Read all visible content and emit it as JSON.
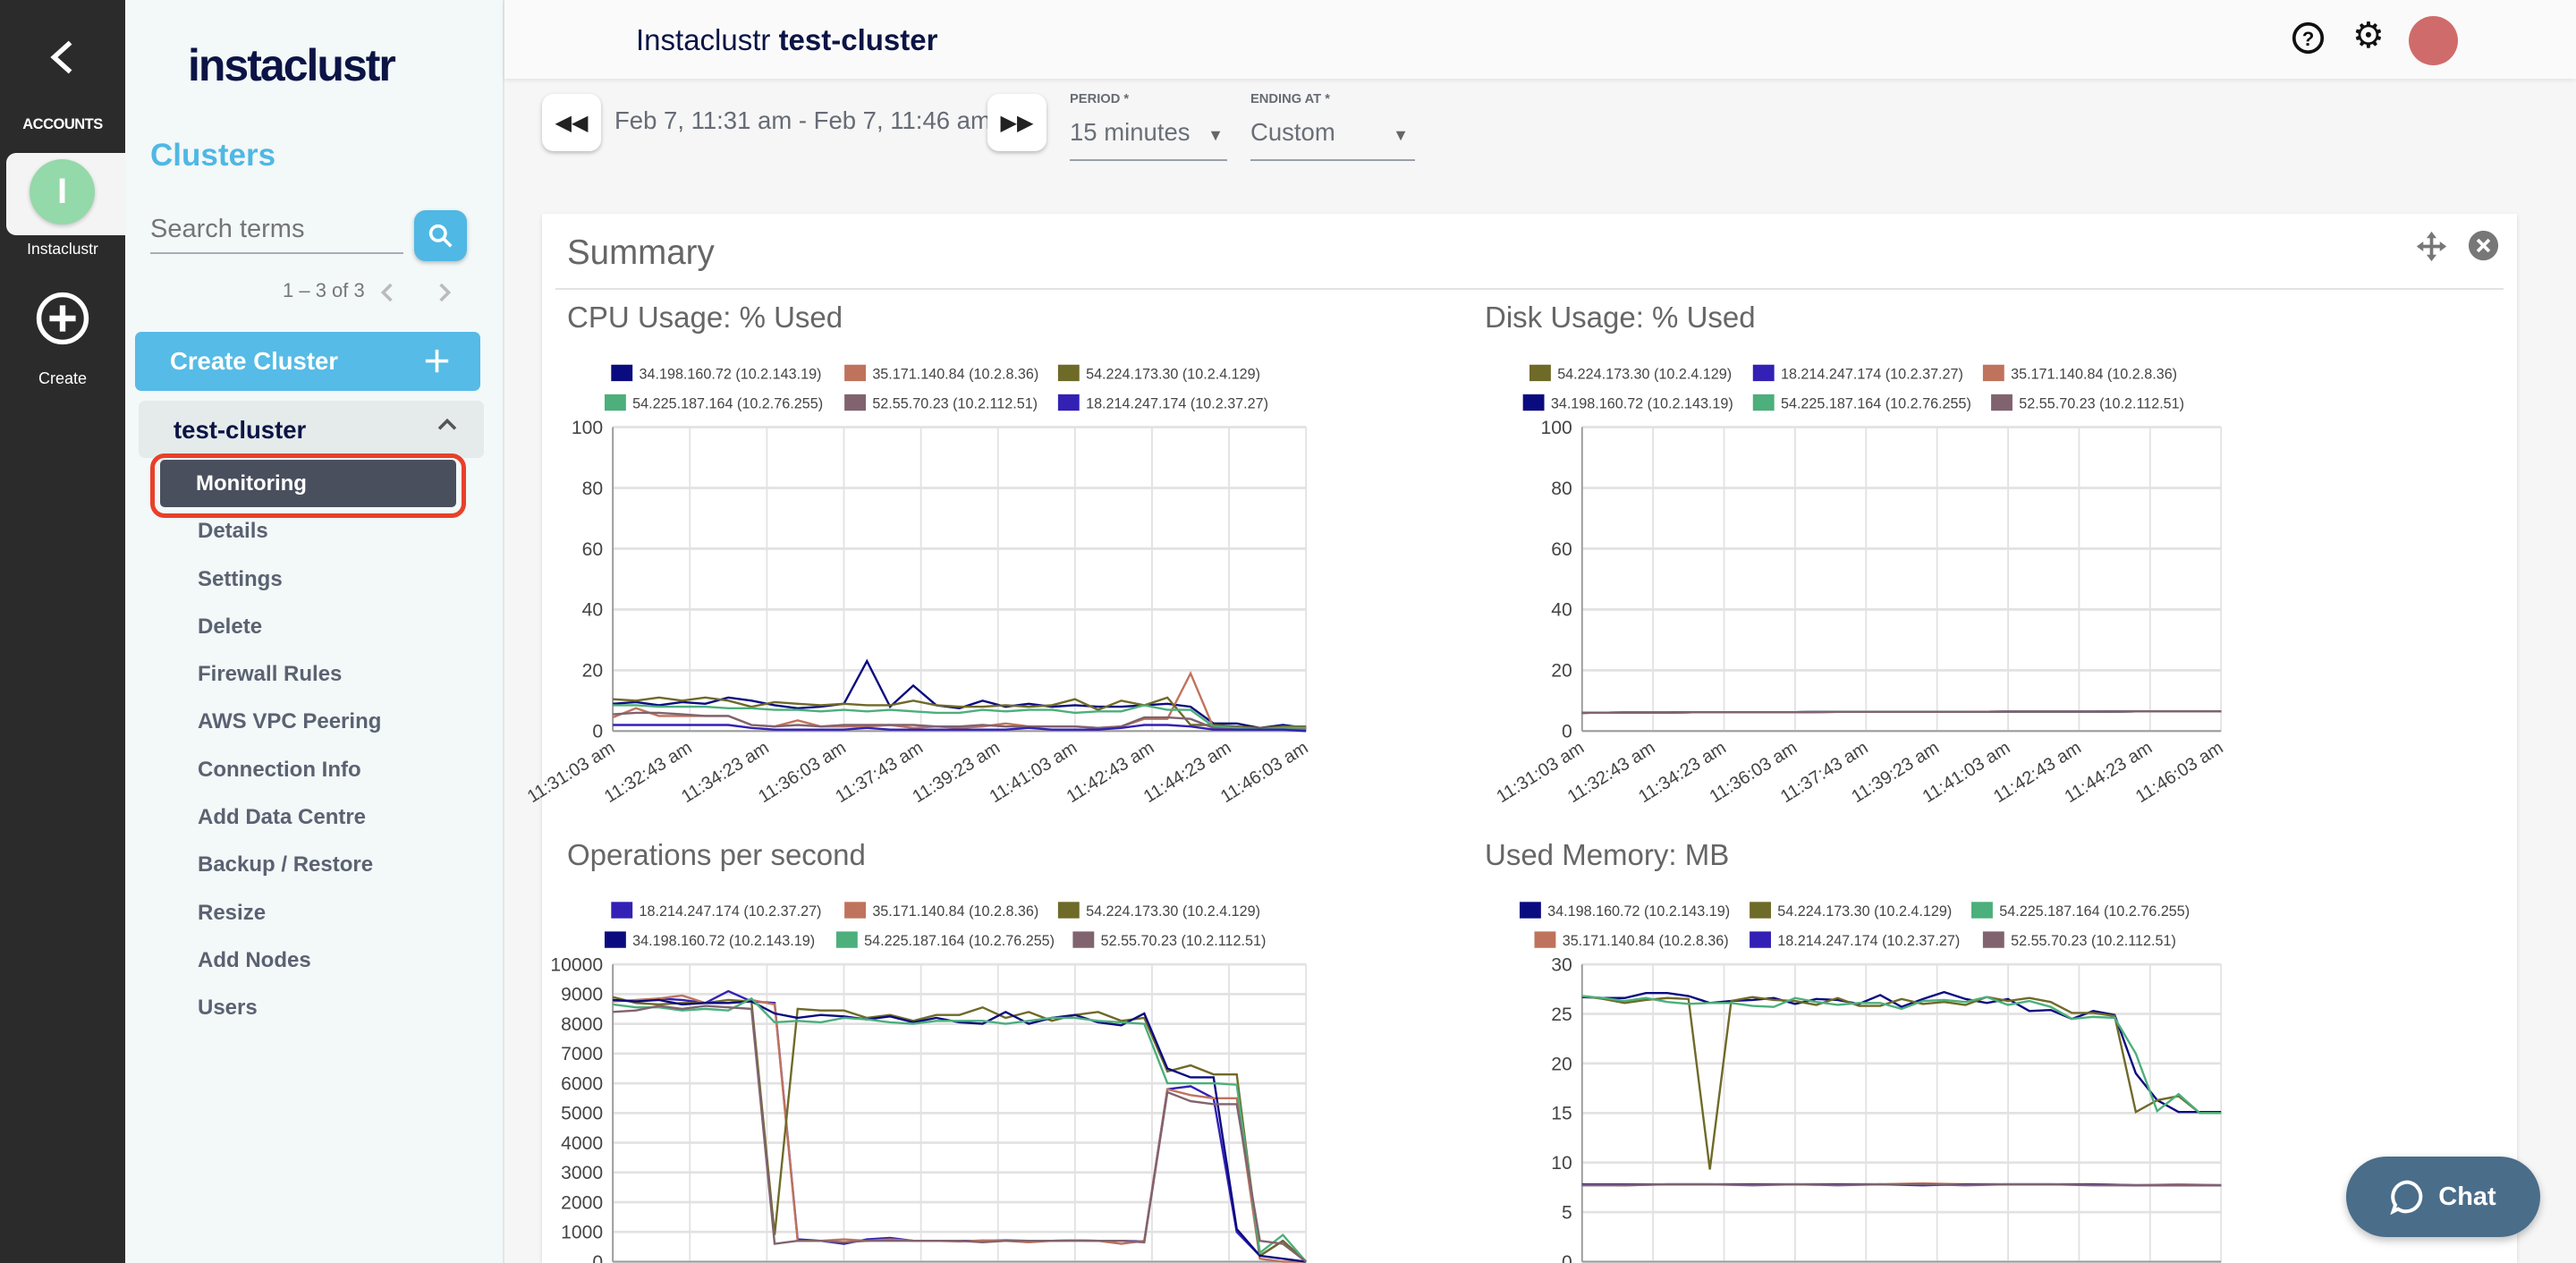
{
  "rail": {
    "accounts_label": "ACCOUNTS",
    "account_name": "Instaclustr",
    "account_initial": "I",
    "account_color": "#94d9a9",
    "create_label": "Create"
  },
  "sidebar": {
    "logo": "instaclustr",
    "section_title": "Clusters",
    "search_placeholder": "Search terms",
    "pagination": "1 – 3 of 3",
    "create_cluster_label": "Create Cluster",
    "cluster_name": "test-cluster",
    "items": [
      {
        "label": "Monitoring",
        "active": true
      },
      {
        "label": "Details"
      },
      {
        "label": "Settings"
      },
      {
        "label": "Delete"
      },
      {
        "label": "Firewall Rules"
      },
      {
        "label": "AWS VPC Peering"
      },
      {
        "label": "Connection Info"
      },
      {
        "label": "Add Data Centre"
      },
      {
        "label": "Backup / Restore"
      },
      {
        "label": "Resize"
      },
      {
        "label": "Add Nodes"
      },
      {
        "label": "Users"
      }
    ]
  },
  "header": {
    "title_prefix": "Instaclustr",
    "title_cluster": "test-cluster",
    "avatar_color": "#d06b6b"
  },
  "controls": {
    "range_text": "Feb 7, 11:31 am - Feb 7, 11:46 am",
    "period_label": "PERIOD *",
    "period_value": "15 minutes",
    "ending_label": "ENDING AT *",
    "ending_value": "Custom"
  },
  "summary": {
    "title": "Summary"
  },
  "chat": {
    "label": "Chat"
  },
  "chart_data": [
    {
      "type": "line",
      "title": "CPU Usage: % Used",
      "ylim": [
        0,
        100
      ],
      "yticks": [
        0,
        20,
        40,
        60,
        80,
        100
      ],
      "grid": true,
      "legend": "top",
      "x_ticks": [
        "11:31:03 am",
        "11:32:43 am",
        "11:34:23 am",
        "11:36:03 am",
        "11:37:43 am",
        "11:39:23 am",
        "11:41:03 am",
        "11:42:43 am",
        "11:44:23 am",
        "11:46:03 am"
      ],
      "series": [
        {
          "name": "34.198.160.72 (10.2.143.19)",
          "color": "#0b0b80",
          "values": [
            9,
            9.5,
            8.5,
            9.5,
            9,
            11,
            10,
            8.5,
            7.5,
            8,
            9,
            23,
            8,
            15,
            8.5,
            7.5,
            10,
            8,
            9,
            8,
            8.5,
            8,
            8,
            8.5,
            9,
            8,
            2.5,
            2.5,
            1,
            2,
            1
          ]
        },
        {
          "name": "35.171.140.84 (10.2.8.36)",
          "color": "#c0735c",
          "values": [
            4.5,
            7.5,
            5,
            5,
            5,
            5,
            2,
            1.5,
            3.5,
            1.5,
            1.5,
            1.5,
            2,
            1,
            1.5,
            1,
            1.5,
            2.5,
            1.5,
            1.5,
            1.5,
            1,
            1.5,
            4,
            4,
            19,
            1,
            1,
            0.5,
            1,
            0.5
          ]
        },
        {
          "name": "54.224.173.30 (10.2.4.129)",
          "color": "#6e6a28",
          "values": [
            10.5,
            10,
            11,
            10,
            11,
            10,
            8,
            9.5,
            9,
            8.5,
            9,
            8.5,
            8.5,
            10,
            8.5,
            8,
            8,
            8.5,
            8,
            8.5,
            10.5,
            7,
            10,
            8.5,
            11,
            2,
            2,
            1.5,
            1,
            1.5,
            1.5
          ]
        },
        {
          "name": "54.225.187.164 (10.2.76.255)",
          "color": "#4caf7c",
          "values": [
            8.5,
            8.5,
            8,
            8,
            8,
            7.5,
            7.5,
            7,
            7,
            6.5,
            7,
            6.5,
            7,
            6.5,
            6,
            6,
            7,
            6.5,
            7,
            7,
            6,
            6.5,
            6.5,
            8.5,
            7,
            7,
            1.5,
            1,
            0.5,
            1,
            1
          ]
        },
        {
          "name": "52.55.70.23 (10.2.112.51)",
          "color": "#80636e",
          "values": [
            5.5,
            6,
            6,
            5.5,
            5,
            5,
            2,
            1.5,
            2,
            1.5,
            2,
            2,
            2,
            2,
            1.5,
            1.5,
            2,
            1.5,
            1.5,
            1.5,
            1.5,
            1,
            1.5,
            4.5,
            4.5,
            4,
            1,
            0.5,
            0.5,
            0.5,
            0.5
          ]
        },
        {
          "name": "18.214.247.174 (10.2.37.27)",
          "color": "#3320b5",
          "values": [
            2,
            2,
            2,
            2,
            2,
            2,
            1,
            0.5,
            0.5,
            0.5,
            0.5,
            1,
            0.5,
            0.5,
            0.5,
            0.5,
            0.5,
            0.5,
            1,
            0.5,
            0.5,
            0.5,
            1,
            2,
            2,
            1.5,
            0.5,
            0.5,
            0.5,
            0.5,
            0
          ]
        }
      ]
    },
    {
      "type": "line",
      "title": "Disk Usage: % Used",
      "ylim": [
        0,
        100
      ],
      "yticks": [
        0,
        20,
        40,
        60,
        80,
        100
      ],
      "grid": true,
      "legend": "top",
      "x_ticks": [
        "11:31:03 am",
        "11:32:43 am",
        "11:34:23 am",
        "11:36:03 am",
        "11:37:43 am",
        "11:39:23 am",
        "11:41:03 am",
        "11:42:43 am",
        "11:44:23 am",
        "11:46:03 am"
      ],
      "series": [
        {
          "name": "54.224.173.30 (10.2.4.129)",
          "color": "#6e6a28",
          "values": [
            6,
            6.1,
            6.1,
            6.2,
            6.2,
            6.2,
            6.3,
            6.3,
            6.3,
            6.3,
            6.4,
            6.4,
            6.4,
            6.5,
            6.5,
            6.5
          ]
        },
        {
          "name": "18.214.247.174 (10.2.37.27)",
          "color": "#3320b5",
          "values": [
            6,
            6.1,
            6.1,
            6.2,
            6.2,
            6.2,
            6.3,
            6.3,
            6.3,
            6.3,
            6.4,
            6.4,
            6.4,
            6.5,
            6.5,
            6.5
          ]
        },
        {
          "name": "35.171.140.84 (10.2.8.36)",
          "color": "#c0735c",
          "values": [
            6,
            6.1,
            6.1,
            6.2,
            6.2,
            6.2,
            6.3,
            6.3,
            6.3,
            6.3,
            6.4,
            6.4,
            6.4,
            6.5,
            6.5,
            6.5
          ]
        },
        {
          "name": "34.198.160.72 (10.2.143.19)",
          "color": "#0b0b80",
          "values": [
            6,
            6.1,
            6.1,
            6.2,
            6.2,
            6.2,
            6.3,
            6.3,
            6.3,
            6.3,
            6.4,
            6.4,
            6.4,
            6.5,
            6.5,
            6.5
          ]
        },
        {
          "name": "54.225.187.164 (10.2.76.255)",
          "color": "#4caf7c",
          "values": [
            6,
            6.1,
            6.1,
            6.2,
            6.2,
            6.2,
            6.3,
            6.3,
            6.3,
            6.3,
            6.4,
            6.4,
            6.4,
            6.5,
            6.5,
            6.5
          ]
        },
        {
          "name": "52.55.70.23 (10.2.112.51)",
          "color": "#80636e",
          "values": [
            6,
            6.1,
            6.1,
            6.2,
            6.2,
            6.2,
            6.3,
            6.3,
            6.3,
            6.3,
            6.4,
            6.4,
            6.4,
            6.5,
            6.5,
            6.5
          ]
        }
      ]
    },
    {
      "type": "line",
      "title": "Operations per second",
      "ylim": [
        0,
        10000
      ],
      "yticks": [
        0,
        1000,
        2000,
        3000,
        4000,
        5000,
        6000,
        7000,
        8000,
        9000,
        10000
      ],
      "grid": true,
      "legend": "top",
      "series": [
        {
          "name": "18.214.247.174 (10.2.37.27)",
          "color": "#3320b5",
          "values": [
            8800,
            8750,
            8850,
            8800,
            8700,
            9100,
            8750,
            8700,
            750,
            700,
            600,
            750,
            800,
            700,
            700,
            700,
            700,
            720,
            700,
            700,
            720,
            700,
            700,
            680,
            5800,
            5900,
            5500,
            1000,
            200,
            700,
            0
          ]
        },
        {
          "name": "35.171.140.84 (10.2.8.36)",
          "color": "#c0735c",
          "values": [
            8750,
            8800,
            8850,
            8950,
            8700,
            8700,
            8800,
            8650,
            700,
            700,
            750,
            700,
            750,
            700,
            700,
            680,
            720,
            700,
            650,
            700,
            720,
            700,
            600,
            700,
            5800,
            5600,
            5500,
            5500,
            100,
            0,
            0
          ]
        },
        {
          "name": "54.224.173.30 (10.2.4.129)",
          "color": "#6e6a28",
          "values": [
            8900,
            8700,
            8650,
            8700,
            8700,
            8800,
            8750,
            900,
            8500,
            8450,
            8450,
            8200,
            8300,
            8100,
            8300,
            8300,
            8550,
            8200,
            8400,
            8100,
            8300,
            8400,
            8100,
            8200,
            6400,
            6600,
            6300,
            6300,
            200,
            700,
            0
          ]
        },
        {
          "name": "34.198.160.72 (10.2.143.19)",
          "color": "#0b0b80",
          "values": [
            8800,
            8750,
            8800,
            8650,
            8700,
            8700,
            8750,
            8350,
            8200,
            8300,
            8250,
            8150,
            8250,
            8050,
            8200,
            8050,
            8000,
            8400,
            8000,
            8200,
            8300,
            8050,
            7950,
            8350,
            6500,
            6200,
            6200,
            1100,
            200,
            100,
            0
          ]
        },
        {
          "name": "54.225.187.164 (10.2.76.255)",
          "color": "#4caf7c",
          "values": [
            8650,
            8550,
            8550,
            8450,
            8500,
            8450,
            8850,
            8050,
            8100,
            8050,
            8200,
            8150,
            8050,
            8000,
            8100,
            8100,
            8100,
            8000,
            8100,
            8200,
            8200,
            8100,
            8050,
            8000,
            6000,
            6000,
            6000,
            5950,
            300,
            900,
            0
          ]
        },
        {
          "name": "52.55.70.23 (10.2.112.51)",
          "color": "#80636e",
          "values": [
            8400,
            8450,
            8600,
            8500,
            8600,
            8550,
            8500,
            600,
            700,
            700,
            650,
            700,
            700,
            700,
            700,
            700,
            650,
            700,
            700,
            700,
            700,
            700,
            700,
            650,
            5700,
            5400,
            5300,
            5300,
            700,
            600,
            0
          ]
        }
      ]
    },
    {
      "type": "line",
      "title": "Used Memory: MB",
      "ylim": [
        0,
        30
      ],
      "yticks": [
        0,
        5,
        10,
        15,
        20,
        25,
        30
      ],
      "grid": true,
      "legend": "top",
      "series": [
        {
          "name": "34.198.160.72 (10.2.143.19)",
          "color": "#0b0b80",
          "values": [
            26.7,
            26.6,
            26.6,
            27.1,
            27.1,
            26.8,
            26.1,
            26.3,
            26.4,
            26.6,
            26,
            26.5,
            26.4,
            26,
            26.9,
            25.7,
            26.5,
            27.2,
            26.5,
            26.1,
            26.5,
            25.3,
            25.4,
            24.5,
            25.3,
            24.9,
            19,
            16.3,
            15.1,
            15.1,
            15.1
          ]
        },
        {
          "name": "54.224.173.30 (10.2.4.129)",
          "color": "#6e6a28",
          "values": [
            26.8,
            26.5,
            26.1,
            26.4,
            26.6,
            26.5,
            9.3,
            26.3,
            26.7,
            26.4,
            26.3,
            25.9,
            26.6,
            25.8,
            25.8,
            26.5,
            26,
            26.2,
            25.9,
            26.7,
            26.3,
            26.6,
            26.2,
            25.1,
            25.1,
            24.8,
            15.1,
            16.3,
            16.7,
            15,
            15
          ]
        },
        {
          "name": "54.225.187.164 (10.2.76.255)",
          "color": "#4caf7c",
          "values": [
            26.8,
            26.6,
            26.3,
            26.6,
            26.2,
            26,
            26.1,
            26.1,
            25.8,
            25.7,
            26.6,
            26.2,
            25.9,
            26.1,
            26.1,
            25.5,
            26.3,
            26.4,
            26.2,
            26.7,
            25.9,
            26.3,
            25.7,
            24.5,
            24.7,
            24.6,
            21,
            15.2,
            16.9,
            15,
            15
          ]
        },
        {
          "name": "35.171.140.84 (10.2.8.36)",
          "color": "#c0735c",
          "values": [
            7.8,
            7.7,
            7.8,
            7.8,
            7.8,
            7.8,
            7.8,
            7.8,
            7.9,
            7.8,
            7.8,
            7.8,
            7.8,
            7.7,
            7.8,
            7.7
          ]
        },
        {
          "name": "18.214.247.174 (10.2.37.27)",
          "color": "#3320b5",
          "values": [
            7.8,
            7.8,
            7.8,
            7.8,
            7.8,
            7.8,
            7.8,
            7.8,
            7.7,
            7.8,
            7.8,
            7.8,
            7.8,
            7.7,
            7.7,
            7.7
          ]
        },
        {
          "name": "52.55.70.23 (10.2.112.51)",
          "color": "#80636e",
          "values": [
            7.7,
            7.7,
            7.8,
            7.8,
            7.7,
            7.8,
            7.7,
            7.8,
            7.8,
            7.7,
            7.8,
            7.8,
            7.7,
            7.7,
            7.7,
            7.7
          ]
        }
      ]
    }
  ]
}
